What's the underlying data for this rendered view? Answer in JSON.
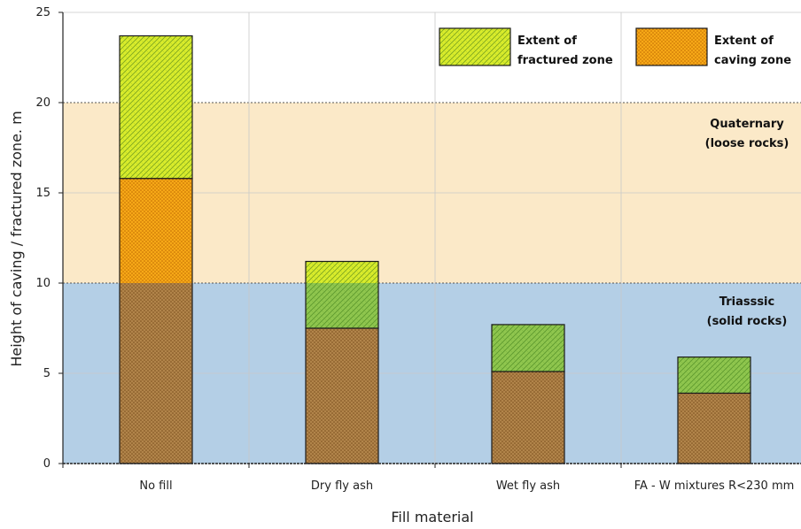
{
  "chart_data": {
    "type": "bar",
    "stacked": true,
    "xlabel": "Fill material",
    "ylabel": "Height of caving / fractured zone. m",
    "ylim": [
      0,
      25
    ],
    "yticks": [
      0,
      5,
      10,
      15,
      20,
      25
    ],
    "grid": true,
    "legend_position": "top-right",
    "categories": [
      "No fill",
      "Dry fly ash",
      "Wet fly ash",
      "FA - W mixtures R<230 mm"
    ],
    "series": [
      {
        "name": "Extent of caving zone",
        "values": [
          15.8,
          7.5,
          5.1,
          3.9
        ]
      },
      {
        "name": "Extent of fractured zone",
        "values": [
          7.9,
          3.7,
          2.6,
          2.0
        ]
      }
    ],
    "totals": [
      23.7,
      11.2,
      7.7,
      5.9
    ],
    "zones": [
      {
        "label_line1": "Quaternary",
        "label_line2": "(loose rocks)",
        "from": 10,
        "to": 20,
        "color": "#fbe9c8"
      },
      {
        "label_line1": "Triasssic",
        "label_line2": "(solid rocks)",
        "from": 0,
        "to": 10,
        "color": "#b4cfe6"
      }
    ],
    "legend": [
      {
        "line1": "Extent of",
        "line2": "fractured zone",
        "series": 1
      },
      {
        "line1": "Extent of",
        "line2": "caving zone",
        "series": 0
      }
    ],
    "colors": {
      "caving": "#f6a817",
      "caving_dot": "#c06a00",
      "fractured": "#d9ec2b",
      "fractured_hatch": "#7fa81f",
      "caving_dark": "#b1844a",
      "fractured_dark": "#8fc64e",
      "quaternary_bg": "#fbe9c8",
      "triassic_bg": "#b4cfe6"
    }
  }
}
